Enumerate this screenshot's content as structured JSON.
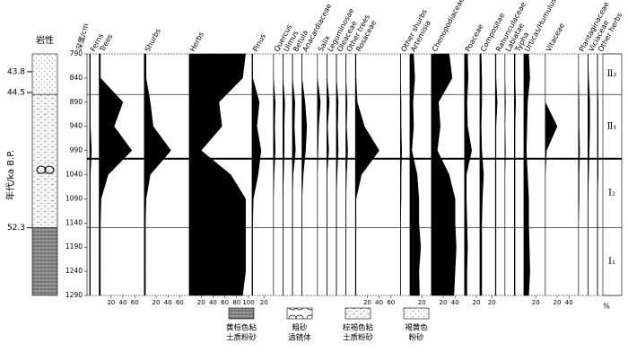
{
  "chart_data": {
    "type": "pollen",
    "lithology_title": "岩性",
    "age_label": "年代/ka B.P.",
    "ylabel": "深度/cm",
    "ylim": [
      790,
      1290
    ],
    "yticks": [
      790,
      840,
      890,
      940,
      990,
      1040,
      1090,
      1140,
      1190,
      1240,
      1290
    ],
    "age_ticks": [
      {
        "value": 827,
        "label": "43.8"
      },
      {
        "value": 870,
        "label": "44.5"
      },
      {
        "value": 1150,
        "label": "52.3"
      }
    ],
    "depths": [
      790,
      840,
      890,
      940,
      990,
      1040,
      1090,
      1140,
      1190,
      1240,
      1290
    ],
    "series": [
      {
        "name": "Ferns",
        "xlim": [
          0,
          10
        ],
        "values": [
          1,
          1,
          1,
          1,
          3,
          1,
          1,
          1,
          1,
          1,
          1
        ]
      },
      {
        "name": "Trees",
        "xlim": [
          0,
          70
        ],
        "xticks": [
          20,
          40,
          60
        ],
        "values": [
          2,
          2,
          40,
          25,
          55,
          15,
          3,
          2,
          2,
          2,
          2
        ]
      },
      {
        "name": "Shurbs",
        "xlim": [
          0,
          70
        ],
        "xticks": [
          20,
          40,
          60
        ],
        "values": [
          3,
          3,
          10,
          15,
          45,
          10,
          3,
          2,
          2,
          2,
          2
        ]
      },
      {
        "name": "Herbs",
        "xlim": [
          0,
          100
        ],
        "xticks": [
          20,
          40,
          60,
          80,
          100
        ],
        "values": [
          95,
          90,
          50,
          55,
          20,
          70,
          95,
          95,
          95,
          95,
          90
        ]
      },
      {
        "name": "Pinus",
        "xlim": [
          0,
          30
        ],
        "xticks": [
          20
        ],
        "values": [
          1,
          1,
          12,
          8,
          15,
          10,
          2,
          1,
          1,
          1,
          1
        ]
      },
      {
        "name": "Quercus",
        "xlim": [
          0,
          10
        ],
        "values": [
          0,
          0,
          3,
          2,
          3,
          1,
          0,
          0,
          0,
          0,
          0
        ]
      },
      {
        "name": "Ulmus",
        "xlim": [
          0,
          10
        ],
        "values": [
          0,
          0,
          3,
          2,
          2,
          1,
          0,
          0,
          0,
          0,
          0
        ]
      },
      {
        "name": "Betula",
        "xlim": [
          0,
          10
        ],
        "values": [
          0,
          0,
          4,
          3,
          5,
          1,
          0,
          0,
          0,
          0,
          0
        ]
      },
      {
        "name": "Anacardiaceae",
        "xlim": [
          0,
          20
        ],
        "values": [
          0,
          0,
          5,
          8,
          6,
          2,
          0,
          0,
          0,
          0,
          0
        ]
      },
      {
        "name": "Salix",
        "xlim": [
          0,
          10
        ],
        "values": [
          0,
          0,
          5,
          2,
          1,
          0,
          0,
          0,
          0,
          0,
          0
        ]
      },
      {
        "name": "Leguminosae",
        "xlim": [
          0,
          10
        ],
        "values": [
          0,
          0,
          4,
          1,
          3,
          0,
          0,
          0,
          0,
          0,
          0
        ]
      },
      {
        "name": "Oleaceae",
        "xlim": [
          0,
          10
        ],
        "values": [
          0,
          0,
          3,
          2,
          3,
          1,
          0,
          0,
          0,
          0,
          0
        ]
      },
      {
        "name": "Other trees",
        "xlim": [
          0,
          10
        ],
        "values": [
          0,
          0,
          2,
          1,
          3,
          1,
          0,
          0,
          0,
          0,
          0
        ]
      },
      {
        "name": "Rosaceae",
        "xlim": [
          0,
          70
        ],
        "xticks": [
          20,
          40,
          60
        ],
        "values": [
          1,
          1,
          3,
          15,
          40,
          10,
          1,
          1,
          1,
          1,
          1
        ]
      },
      {
        "name": "Other shurbs",
        "xlim": [
          0,
          10
        ],
        "values": [
          0,
          0,
          1,
          1,
          2,
          1,
          1,
          0,
          0,
          0,
          0
        ]
      },
      {
        "name": "Artemisia",
        "xlim": [
          0,
          30
        ],
        "xticks": [
          20
        ],
        "values": [
          6,
          8,
          5,
          6,
          3,
          12,
          15,
          15,
          18,
          15,
          16
        ]
      },
      {
        "name": "Chenopodiaceae",
        "xlim": [
          0,
          50
        ],
        "xticks": [
          20,
          40
        ],
        "values": [
          30,
          35,
          12,
          15,
          10,
          30,
          40,
          40,
          42,
          40,
          38
        ]
      },
      {
        "name": "Poaceae",
        "xlim": [
          0,
          20
        ],
        "xticks": [
          20
        ],
        "values": [
          5,
          6,
          4,
          5,
          12,
          3,
          3,
          4,
          5,
          4,
          4
        ]
      },
      {
        "name": "Compositae",
        "xlim": [
          0,
          20
        ],
        "xticks": [
          20
        ],
        "values": [
          2,
          3,
          3,
          2,
          3,
          6,
          4,
          3,
          3,
          3,
          3
        ]
      },
      {
        "name": "Ranunculaceae",
        "xlim": [
          0,
          10
        ],
        "values": [
          1,
          1,
          3,
          1,
          1,
          1,
          1,
          1,
          1,
          1,
          1
        ]
      },
      {
        "name": "Labiatae",
        "xlim": [
          0,
          10
        ],
        "values": [
          0,
          0,
          1,
          0,
          1,
          0,
          0,
          0,
          0,
          0,
          0
        ]
      },
      {
        "name": "Typha",
        "xlim": [
          0,
          10
        ],
        "values": [
          1,
          1,
          2,
          1,
          1,
          1,
          1,
          1,
          1,
          1,
          1
        ]
      },
      {
        "name": "Urticas/Humulus",
        "xlim": [
          0,
          30
        ],
        "xticks": [
          20
        ],
        "values": [
          8,
          10,
          6,
          5,
          4,
          6,
          8,
          8,
          9,
          10,
          8
        ]
      },
      {
        "name": "Vitaceae",
        "xlim": [
          0,
          50
        ],
        "xticks": [
          20,
          40
        ],
        "values": [
          0,
          0,
          0,
          20,
          2,
          0,
          0,
          0,
          0,
          0,
          0
        ]
      },
      {
        "name": "Plantaginaceae",
        "xlim": [
          0,
          10
        ],
        "values": [
          0,
          0,
          1,
          1,
          2,
          1,
          1,
          0,
          0,
          0,
          0
        ]
      },
      {
        "name": "Viciaceae",
        "xlim": [
          0,
          10
        ],
        "values": [
          0,
          1,
          3,
          3,
          2,
          1,
          0,
          0,
          0,
          0,
          0
        ]
      },
      {
        "name": "Other herbs",
        "xlim": [
          0,
          10
        ],
        "values": [
          0,
          0,
          1,
          1,
          1,
          1,
          0,
          0,
          0,
          0,
          0
        ]
      }
    ],
    "zones": [
      {
        "label": "Ⅱ₂",
        "top": 790,
        "bottom": 874
      },
      {
        "label": "Ⅱ₁",
        "top": 874,
        "bottom": 1007
      },
      {
        "label": "Ⅰ₂",
        "top": 1007,
        "bottom": 1150
      },
      {
        "label": "Ⅰ₁",
        "top": 1150,
        "bottom": 1290
      }
    ],
    "percent_label": "%",
    "lithology": [
      {
        "top": 790,
        "bottom": 874,
        "pattern": "silt"
      },
      {
        "top": 874,
        "bottom": 1150,
        "pattern": "clay-silt-brown"
      },
      {
        "top": 1150,
        "bottom": 1290,
        "pattern": "clay-silt-yellow"
      }
    ],
    "lens_depth": 1030,
    "legend": [
      {
        "pattern": "clay-silt-yellow",
        "lines": [
          "黄棕色粘",
          "土质粉砂"
        ]
      },
      {
        "pattern": "lens",
        "lines": [
          "粗砂",
          "透镜体"
        ]
      },
      {
        "pattern": "clay-silt-brown",
        "lines": [
          "棕褐色粘",
          "土质粉砂"
        ]
      },
      {
        "pattern": "silt",
        "lines": [
          "褐黄色",
          "粉砂"
        ]
      }
    ]
  }
}
